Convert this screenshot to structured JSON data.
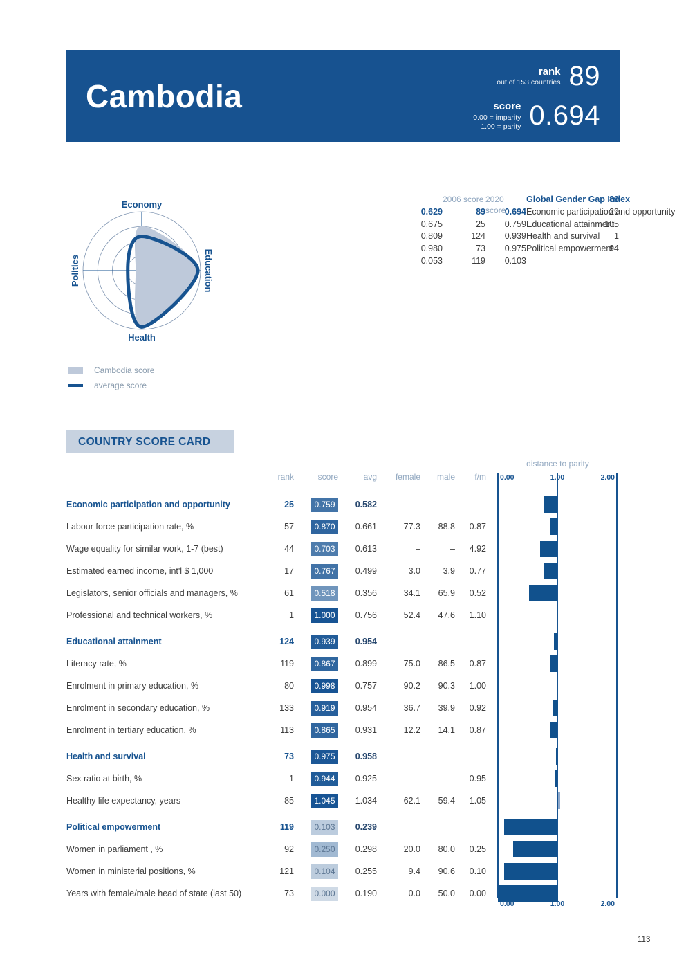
{
  "colors": {
    "accent": "#175390",
    "header_bg": "#175290",
    "light_fill": "#bec9da",
    "bar": "#11518d",
    "bar_over": "#8ea9cc",
    "box_low": "#cfdae6",
    "box_high": "#175494",
    "muted": "#93a9c1",
    "title_bg": "#c7d2e0"
  },
  "page": {
    "number": "113"
  },
  "header": {
    "country": "Cambodia",
    "rank_label": "rank",
    "rank_sub": "out of 153 countries",
    "rank_value": "89",
    "score_label": "score",
    "score_sub1": "0.00 = imparity",
    "score_sub2": "1.00 = parity",
    "score_value": "0.694"
  },
  "radar": {
    "axes": [
      "Economy",
      "Education",
      "Health",
      "Politics"
    ],
    "rings": [
      0.25,
      0.5,
      0.75,
      1.0
    ],
    "country_values": [
      0.759,
      0.939,
      0.975,
      0.103
    ],
    "average_values": [
      0.582,
      0.954,
      0.958,
      0.239
    ],
    "legend": [
      {
        "label": "Cambodia score",
        "type": "fill"
      },
      {
        "label": "average score",
        "type": "line"
      }
    ]
  },
  "summary_table": {
    "col_headers": [
      "2006 score",
      "2020 score"
    ],
    "rows": [
      {
        "label": "Global Gender Gap Index",
        "rank_2006": "89",
        "score_2006": "0.629",
        "rank_2020": "89",
        "score_2020": "0.694",
        "bold": true
      },
      {
        "label": "Economic participation and opportunity",
        "rank_2006": "29",
        "score_2006": "0.675",
        "rank_2020": "25",
        "score_2020": "0.759",
        "bold": false
      },
      {
        "label": "Educational attainment",
        "rank_2006": "105",
        "score_2006": "0.809",
        "rank_2020": "124",
        "score_2020": "0.939",
        "bold": false
      },
      {
        "label": "Health and survival",
        "rank_2006": "1",
        "score_2006": "0.980",
        "rank_2020": "73",
        "score_2020": "0.975",
        "bold": false
      },
      {
        "label": "Political empowerment",
        "rank_2006": "94",
        "score_2006": "0.053",
        "rank_2020": "119",
        "score_2020": "0.103",
        "bold": false
      }
    ]
  },
  "scorecard": {
    "title": "COUNTRY SCORE CARD",
    "col_headers": [
      "rank",
      "score",
      "avg",
      "female",
      "male",
      "f/m"
    ],
    "distance_label": "distance to parity",
    "scale_labels": [
      "0.00",
      "1.00",
      "2.00"
    ],
    "rows": [
      {
        "label": "Economic participation and opportunity",
        "rank": "25",
        "score": "0.759",
        "score_val": 0.759,
        "avg": "0.582",
        "female": "",
        "male": "",
        "fm": "",
        "section": true
      },
      {
        "label": "Labour force participation rate, %",
        "rank": "57",
        "score": "0.870",
        "score_val": 0.87,
        "avg": "0.661",
        "female": "77.3",
        "male": "88.8",
        "fm": "0.87",
        "section": false
      },
      {
        "label": "Wage equality for similar work, 1-7 (best)",
        "rank": "44",
        "score": "0.703",
        "score_val": 0.703,
        "avg": "0.613",
        "female": "–",
        "male": "–",
        "fm": "4.92",
        "section": false
      },
      {
        "label": "Estimated earned income, int'l $ 1,000",
        "rank": "17",
        "score": "0.767",
        "score_val": 0.767,
        "avg": "0.499",
        "female": "3.0",
        "male": "3.9",
        "fm": "0.77",
        "section": false
      },
      {
        "label": "Legislators, senior officials and managers, %",
        "rank": "61",
        "score": "0.518",
        "score_val": 0.518,
        "avg": "0.356",
        "female": "34.1",
        "male": "65.9",
        "fm": "0.52",
        "section": false
      },
      {
        "label": "Professional and technical workers, %",
        "rank": "1",
        "score": "1.000",
        "score_val": 1.0,
        "avg": "0.756",
        "female": "52.4",
        "male": "47.6",
        "fm": "1.10",
        "section": false
      },
      {
        "label": "Educational attainment",
        "rank": "124",
        "score": "0.939",
        "score_val": 0.939,
        "avg": "0.954",
        "female": "",
        "male": "",
        "fm": "",
        "section": true
      },
      {
        "label": "Literacy rate, %",
        "rank": "119",
        "score": "0.867",
        "score_val": 0.867,
        "avg": "0.899",
        "female": "75.0",
        "male": "86.5",
        "fm": "0.87",
        "section": false
      },
      {
        "label": "Enrolment in primary education, %",
        "rank": "80",
        "score": "0.998",
        "score_val": 0.998,
        "avg": "0.757",
        "female": "90.2",
        "male": "90.3",
        "fm": "1.00",
        "section": false
      },
      {
        "label": "Enrolment in secondary education, %",
        "rank": "133",
        "score": "0.919",
        "score_val": 0.919,
        "avg": "0.954",
        "female": "36.7",
        "male": "39.9",
        "fm": "0.92",
        "section": false
      },
      {
        "label": "Enrolment in tertiary education, %",
        "rank": "113",
        "score": "0.865",
        "score_val": 0.865,
        "avg": "0.931",
        "female": "12.2",
        "male": "14.1",
        "fm": "0.87",
        "section": false
      },
      {
        "label": "Health and survival",
        "rank": "73",
        "score": "0.975",
        "score_val": 0.975,
        "avg": "0.958",
        "female": "",
        "male": "",
        "fm": "",
        "section": true
      },
      {
        "label": "Sex ratio at birth, %",
        "rank": "1",
        "score": "0.944",
        "score_val": 0.944,
        "avg": "0.925",
        "female": "–",
        "male": "–",
        "fm": "0.95",
        "section": false
      },
      {
        "label": "Healthy life expectancy, years",
        "rank": "85",
        "score": "1.045",
        "score_val": 1.045,
        "avg": "1.034",
        "female": "62.1",
        "male": "59.4",
        "fm": "1.05",
        "section": false
      },
      {
        "label": "Political empowerment",
        "rank": "119",
        "score": "0.103",
        "score_val": 0.103,
        "avg": "0.239",
        "female": "",
        "male": "",
        "fm": "",
        "section": true
      },
      {
        "label": "Women in parliament , %",
        "rank": "92",
        "score": "0.250",
        "score_val": 0.25,
        "avg": "0.298",
        "female": "20.0",
        "male": "80.0",
        "fm": "0.25",
        "section": false
      },
      {
        "label": "Women in ministerial positions, %",
        "rank": "121",
        "score": "0.104",
        "score_val": 0.104,
        "avg": "0.255",
        "female": "9.4",
        "male": "90.6",
        "fm": "0.10",
        "section": false
      },
      {
        "label": "Years with female/male head of state (last 50)",
        "rank": "73",
        "score": "0.000",
        "score_val": 0.0,
        "avg": "0.190",
        "female": "0.0",
        "male": "50.0",
        "fm": "0.00",
        "section": false
      }
    ]
  },
  "chart_data": [
    {
      "type": "radar",
      "axes": [
        "Economy",
        "Education",
        "Health",
        "Politics"
      ],
      "series": [
        {
          "name": "Cambodia score",
          "values": [
            0.759,
            0.939,
            0.975,
            0.103
          ]
        },
        {
          "name": "average score",
          "values": [
            0.582,
            0.954,
            0.958,
            0.239
          ]
        }
      ],
      "rlim": [
        0,
        1
      ],
      "rings": [
        0.25,
        0.5,
        0.75,
        1.0
      ],
      "legend_position": "bottom-left"
    },
    {
      "type": "bar",
      "title": "distance to parity",
      "orientation": "horizontal",
      "xlim": [
        0,
        2
      ],
      "ticks": [
        0.0,
        1.0,
        2.0
      ],
      "note": "each bar spans from the indicator score to parity (1.00)",
      "categories": [
        "Economic participation and opportunity",
        "Labour force participation rate, %",
        "Wage equality for similar work, 1-7 (best)",
        "Estimated earned income, int'l $ 1,000",
        "Legislators, senior officials and managers, %",
        "Professional and technical workers, %",
        "Educational attainment",
        "Literacy rate, %",
        "Enrolment in primary education, %",
        "Enrolment in secondary education, %",
        "Enrolment in tertiary education, %",
        "Health and survival",
        "Sex ratio at birth, %",
        "Healthy life expectancy, years",
        "Political empowerment",
        "Women in parliament , %",
        "Women in ministerial positions, %",
        "Years with female/male head of state (last 50)"
      ],
      "values": [
        0.759,
        0.87,
        0.703,
        0.767,
        0.518,
        1.0,
        0.939,
        0.867,
        0.998,
        0.919,
        0.865,
        0.975,
        0.944,
        1.045,
        0.103,
        0.25,
        0.104,
        0.0
      ]
    }
  ]
}
